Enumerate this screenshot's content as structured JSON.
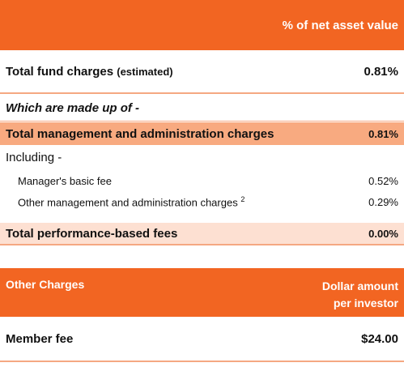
{
  "fees_table": {
    "header_col": "% of net asset value",
    "total_fund_charges": {
      "label": "Total fund charges",
      "qualifier": "(estimated)",
      "value": "0.81%"
    },
    "made_up_of": "Which are made up of -",
    "total_mgmt_admin": {
      "label": "Total management and administration charges",
      "value": "0.81%"
    },
    "including": "Including -",
    "managers_fee": {
      "label": "Manager's basic fee",
      "value": "0.52%"
    },
    "other_mgmt": {
      "label": "Other management and administration charges",
      "footnote": "2",
      "value": "0.29%"
    },
    "performance_fees": {
      "label": "Total performance-based fees",
      "value": "0.00%"
    }
  },
  "other_charges": {
    "header_label": "Other Charges",
    "header_col_line1": "Dollar amount",
    "header_col_line2": "per investor",
    "member_fee": {
      "label": "Member fee",
      "value": "$24.00"
    }
  },
  "colors": {
    "header_orange": "#f26522",
    "mgmt_highlight": "#f8aa80",
    "perf_highlight": "#fde0d2",
    "divider": "#f5a882"
  }
}
